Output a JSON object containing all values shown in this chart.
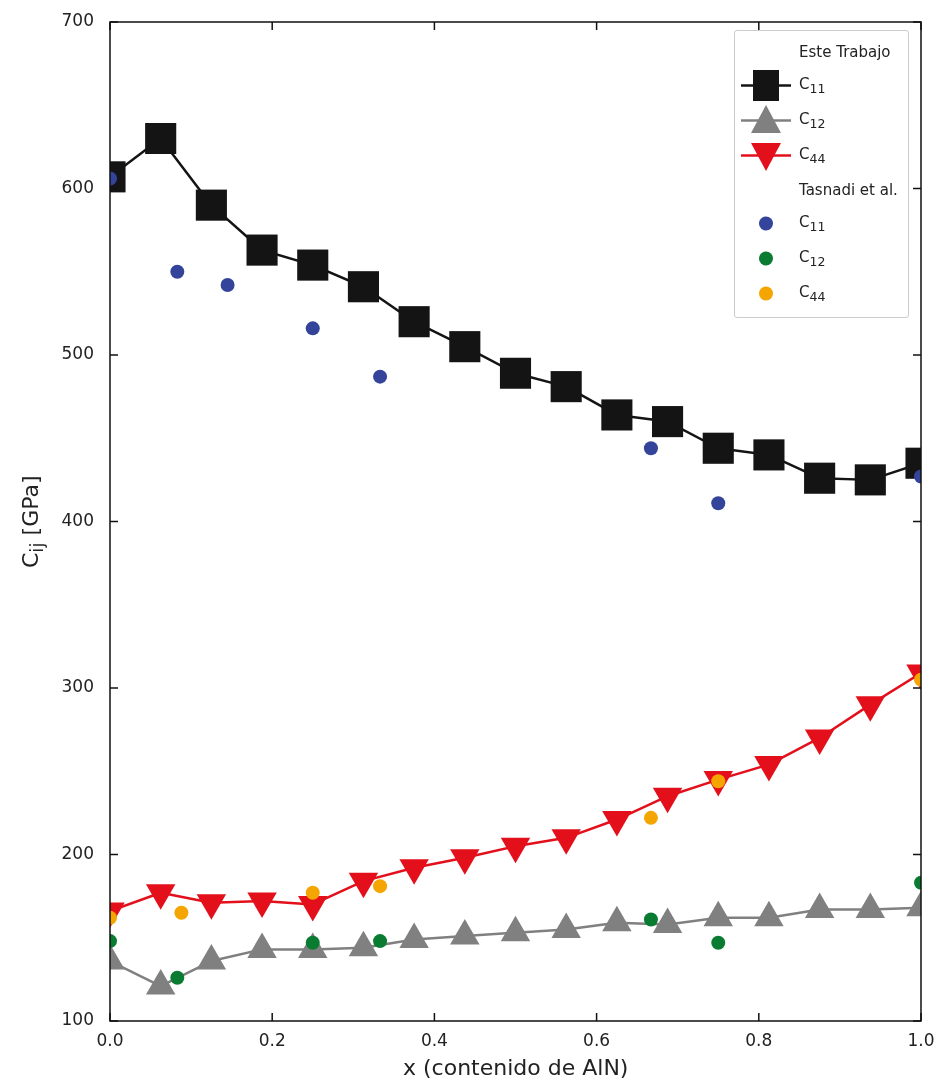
{
  "chart_data": {
    "type": "line",
    "xlabel": "x (contenido de AlN)",
    "ylabel": "C$_{ij}$ [GPa]",
    "xlim": [
      0,
      1
    ],
    "xticks": [
      {
        "value": 0,
        "label": "0.0"
      },
      {
        "value": 0.2,
        "label": "0.2"
      },
      {
        "value": 0.4,
        "label": "0.4"
      },
      {
        "value": 0.6,
        "label": "0.6"
      },
      {
        "value": 0.8,
        "label": "0.8"
      },
      {
        "value": 1,
        "label": "1.0"
      }
    ],
    "ylim": [
      100,
      700
    ],
    "yticks": [
      100,
      200,
      300,
      400,
      500,
      600,
      700
    ],
    "grid": false,
    "legend": "top right",
    "line_style": "solid",
    "annotations": [
      "Este Trabajo",
      "Tasnadi et al."
    ],
    "x": [
      0,
      0.0625,
      0.125,
      0.1875,
      0.25,
      0.3125,
      0.375,
      0.4375,
      0.5,
      0.5625,
      0.625,
      0.6875,
      0.75,
      0.8125,
      0.875,
      0.9375,
      1
    ],
    "series": [
      {
        "name": "C$_{11}$",
        "type": "line",
        "marker": "square",
        "color": "#141414",
        "values": [
          607,
          630,
          590,
          563,
          554,
          541,
          520,
          505,
          489,
          481,
          464,
          460,
          444,
          440,
          426,
          425,
          435
        ]
      },
      {
        "name": "C$_{12}$",
        "type": "line",
        "marker": "triangle",
        "color": "#808080",
        "values": [
          136,
          121,
          136,
          143,
          143,
          144,
          149,
          151,
          153,
          155,
          159,
          158,
          162,
          162,
          167,
          167,
          168
        ]
      },
      {
        "name": "C$_{44}$",
        "type": "line",
        "marker": "triangle_down",
        "color": "#e3101c",
        "values": [
          166,
          177,
          171,
          172,
          170,
          184,
          192,
          198,
          205,
          210,
          221,
          235,
          245,
          254,
          270,
          290,
          309
        ]
      },
      {
        "name": "C$_{11}$",
        "type": "scatter",
        "marker": "circle",
        "color": "#33449a",
        "x": [
          0,
          0.083,
          0.145,
          0.25,
          0.333,
          0.667,
          0.75,
          1
        ],
        "values": [
          606,
          550,
          542,
          516,
          487,
          444,
          411,
          427
        ]
      },
      {
        "name": "C$_{12}$",
        "type": "scatter",
        "marker": "circle",
        "color": "#0a7c32",
        "x": [
          0,
          0.083,
          0.25,
          0.333,
          0.667,
          0.75,
          1
        ],
        "values": [
          148,
          126,
          147,
          148,
          161,
          147,
          183
        ]
      },
      {
        "name": "C$_{44}$",
        "type": "scatter",
        "marker": "circle",
        "color": "#f5a500",
        "x": [
          0,
          0.088,
          0.25,
          0.333,
          0.667,
          0.75,
          1
        ],
        "values": [
          162,
          165,
          177,
          181,
          222,
          244,
          305
        ]
      }
    ]
  }
}
